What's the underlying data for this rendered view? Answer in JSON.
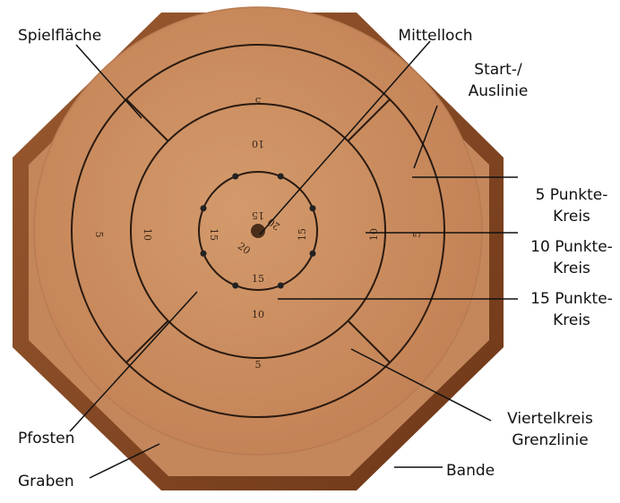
{
  "labels": [
    {
      "lines": [
        "Spielfläche"
      ]
    },
    {
      "lines": [
        "Mittelloch"
      ]
    },
    {
      "lines": [
        "Start-/",
        "Auslinie"
      ]
    },
    {
      "lines": [
        "5 Punkte-",
        "Kreis"
      ]
    },
    {
      "lines": [
        "10 Punkte-",
        "Kreis"
      ]
    },
    {
      "lines": [
        "15 Punkte-",
        "Kreis"
      ]
    },
    {
      "lines": [
        "Pfosten"
      ]
    },
    {
      "lines": [
        "Viertelkreis",
        "Grenzlinie"
      ]
    },
    {
      "lines": [
        "Graben"
      ]
    },
    {
      "lines": [
        "Bande"
      ]
    }
  ],
  "board_scores": [
    5,
    10,
    15,
    20
  ]
}
